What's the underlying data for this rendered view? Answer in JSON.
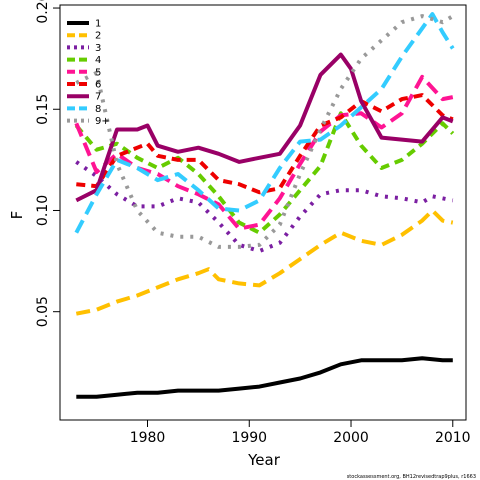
{
  "chart_data": {
    "type": "line",
    "title": "",
    "xlabel": "Year",
    "ylabel": "F",
    "xlim": [
      1972,
      2011
    ],
    "ylim": [
      0.0,
      0.2
    ],
    "xticks": [
      1980,
      1990,
      2000,
      2010
    ],
    "yticks": [
      0.05,
      0.1,
      0.15,
      0.2
    ],
    "ytick_labels": [
      "0.05",
      "0.10",
      "0.15",
      "0.20"
    ],
    "legend_position": "top-left",
    "footnote": "stockassessment.org, BH12revisedtrap9plus, r1663",
    "series": [
      {
        "name": "1",
        "color": "#000000",
        "dash": "solid",
        "x": [
          1973,
          1975,
          1977,
          1979,
          1981,
          1983,
          1985,
          1987,
          1989,
          1991,
          1993,
          1995,
          1997,
          1999,
          2001,
          2003,
          2005,
          2007,
          2009,
          2010
        ],
        "values": [
          0.008,
          0.008,
          0.009,
          0.01,
          0.01,
          0.011,
          0.011,
          0.011,
          0.012,
          0.013,
          0.015,
          0.017,
          0.02,
          0.024,
          0.026,
          0.026,
          0.026,
          0.027,
          0.026,
          0.026
        ]
      },
      {
        "name": "2",
        "color": "#FFC000",
        "dash": "long",
        "x": [
          1973,
          1975,
          1977,
          1979,
          1981,
          1983,
          1985,
          1986,
          1987,
          1989,
          1991,
          1993,
          1995,
          1997,
          1999,
          2001,
          2003,
          2005,
          2007,
          2008,
          2009,
          2010
        ],
        "values": [
          0.049,
          0.051,
          0.055,
          0.058,
          0.062,
          0.066,
          0.069,
          0.071,
          0.066,
          0.064,
          0.063,
          0.069,
          0.076,
          0.083,
          0.089,
          0.085,
          0.083,
          0.088,
          0.095,
          0.1,
          0.095,
          0.094
        ]
      },
      {
        "name": "3",
        "color": "#7B1FA2",
        "dash": "dot",
        "x": [
          1973,
          1975,
          1977,
          1979,
          1981,
          1983,
          1985,
          1987,
          1989,
          1991,
          1993,
          1995,
          1997,
          1999,
          2001,
          2003,
          2005,
          2007,
          2008,
          2010
        ],
        "values": [
          0.124,
          0.117,
          0.108,
          0.102,
          0.102,
          0.106,
          0.104,
          0.094,
          0.083,
          0.08,
          0.084,
          0.097,
          0.108,
          0.11,
          0.11,
          0.107,
          0.106,
          0.104,
          0.107,
          0.105
        ]
      },
      {
        "name": "4",
        "color": "#66CC00",
        "dash": "dash",
        "x": [
          1973,
          1975,
          1977,
          1979,
          1981,
          1983,
          1985,
          1987,
          1989,
          1991,
          1993,
          1995,
          1997,
          1999,
          2001,
          2003,
          2005,
          2007,
          2009,
          2010
        ],
        "values": [
          0.142,
          0.13,
          0.133,
          0.126,
          0.121,
          0.126,
          0.118,
          0.107,
          0.094,
          0.089,
          0.098,
          0.11,
          0.122,
          0.148,
          0.132,
          0.121,
          0.125,
          0.133,
          0.143,
          0.138
        ]
      },
      {
        "name": "5",
        "color": "#FF1493",
        "dash": "long",
        "x": [
          1973,
          1975,
          1977,
          1979,
          1981,
          1983,
          1985,
          1987,
          1989,
          1991,
          1993,
          1995,
          1997,
          1999,
          2001,
          2003,
          2005,
          2007,
          2009,
          2010
        ],
        "values": [
          0.143,
          0.119,
          0.128,
          0.121,
          0.118,
          0.112,
          0.108,
          0.103,
          0.091,
          0.093,
          0.106,
          0.123,
          0.139,
          0.147,
          0.148,
          0.141,
          0.148,
          0.166,
          0.155,
          0.156
        ]
      },
      {
        "name": "6",
        "color": "#EE0000",
        "dash": "dash",
        "x": [
          1973,
          1975,
          1977,
          1979,
          1980,
          1981,
          1983,
          1985,
          1987,
          1989,
          1991,
          1993,
          1995,
          1997,
          1999,
          2001,
          2003,
          2005,
          2007,
          2009,
          2010
        ],
        "values": [
          0.113,
          0.112,
          0.127,
          0.131,
          0.133,
          0.127,
          0.125,
          0.125,
          0.115,
          0.113,
          0.109,
          0.111,
          0.127,
          0.142,
          0.146,
          0.154,
          0.149,
          0.155,
          0.157,
          0.147,
          0.145
        ]
      },
      {
        "name": "7",
        "color": "#990066",
        "dash": "solid",
        "x": [
          1973,
          1975,
          1977,
          1979,
          1980,
          1981,
          1983,
          1985,
          1987,
          1989,
          1991,
          1993,
          1995,
          1997,
          1999,
          2000,
          2001,
          2003,
          2005,
          2007,
          2009,
          2010
        ],
        "values": [
          0.105,
          0.11,
          0.14,
          0.14,
          0.142,
          0.132,
          0.129,
          0.131,
          0.128,
          0.124,
          0.126,
          0.128,
          0.142,
          0.167,
          0.177,
          0.17,
          0.154,
          0.136,
          0.135,
          0.134,
          0.146,
          0.144
        ]
      },
      {
        "name": "8",
        "color": "#33CCFF",
        "dash": "long",
        "x": [
          1973,
          1975,
          1977,
          1979,
          1981,
          1983,
          1985,
          1987,
          1989,
          1991,
          1993,
          1995,
          1997,
          1999,
          2001,
          2003,
          2005,
          2007,
          2008,
          2009,
          2010
        ],
        "values": [
          0.089,
          0.108,
          0.125,
          0.121,
          0.115,
          0.118,
          0.11,
          0.101,
          0.1,
          0.105,
          0.121,
          0.134,
          0.135,
          0.142,
          0.151,
          0.16,
          0.176,
          0.19,
          0.197,
          0.188,
          0.18
        ]
      },
      {
        "name": "9+",
        "color": "#999999",
        "dash": "dot",
        "x": [
          1973,
          1975,
          1977,
          1979,
          1981,
          1983,
          1985,
          1987,
          1989,
          1991,
          1993,
          1995,
          1997,
          1999,
          2001,
          2003,
          2005,
          2007,
          2009,
          2010
        ],
        "values": [
          0.163,
          0.168,
          0.123,
          0.1,
          0.089,
          0.087,
          0.087,
          0.082,
          0.082,
          0.083,
          0.093,
          0.118,
          0.14,
          0.16,
          0.175,
          0.184,
          0.193,
          0.196,
          0.193,
          0.196
        ]
      }
    ]
  }
}
